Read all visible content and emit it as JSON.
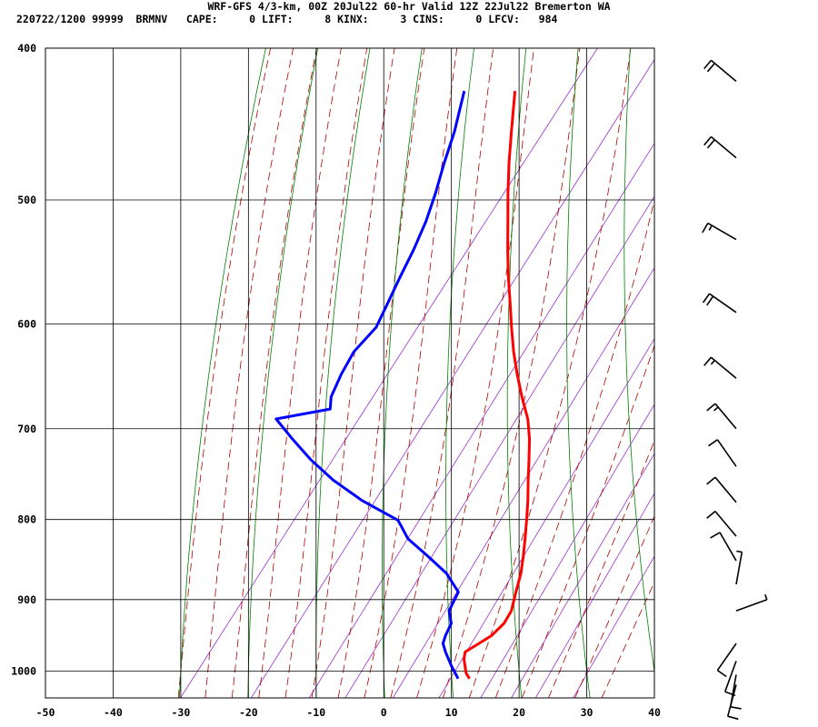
{
  "header": {
    "title": "WRF-GFS 4/3-km, 00Z 20Jul22 60-hr Valid 12Z 22Jul22 Bremerton WA",
    "info": "220722/1200 99999  BRMNV   CAPE:     0 LIFT:     8 KINX:     3 CINS:     0 LFCV:   984"
  },
  "chart_data": {
    "type": "line",
    "title": "WRF-GFS 4/3-km, 00Z 20Jul22 60-hr Valid 12Z 22Jul22 Bremerton WA",
    "xlabel": "",
    "ylabel": "",
    "xlim": [
      -50,
      40
    ],
    "ylim": [
      1040,
      400
    ],
    "y_scale": "log",
    "skew_t": true,
    "x_ticks": [
      -50,
      -40,
      -30,
      -20,
      -10,
      0,
      10,
      20,
      30,
      40
    ],
    "y_ticks": [
      400,
      500,
      600,
      700,
      800,
      900,
      1000
    ],
    "grid": true,
    "series": [
      {
        "name": "temperature",
        "color": "#ff0000",
        "points": [
          [
            13.5,
            1011
          ],
          [
            12.4,
            1003
          ],
          [
            11.5,
            993
          ],
          [
            10.5,
            982
          ],
          [
            9.9,
            972
          ],
          [
            11,
            960
          ],
          [
            12,
            949
          ],
          [
            12.5,
            932
          ],
          [
            12.2,
            915
          ],
          [
            10.8,
            890
          ],
          [
            9.5,
            866
          ],
          [
            8,
            845
          ],
          [
            6.3,
            823
          ],
          [
            4.5,
            801
          ],
          [
            2.5,
            778
          ],
          [
            0.3,
            755
          ],
          [
            -1.8,
            733
          ],
          [
            -4,
            711
          ],
          [
            -6.5,
            690
          ],
          [
            -9.8,
            668
          ],
          [
            -13,
            646
          ],
          [
            -16,
            625
          ],
          [
            -19,
            603
          ],
          [
            -22,
            581
          ],
          [
            -25,
            560
          ],
          [
            -28.1,
            538
          ],
          [
            -31.2,
            516
          ],
          [
            -34.3,
            495
          ],
          [
            -37.4,
            474
          ],
          [
            -40.6,
            452
          ],
          [
            -44.5,
            426
          ]
        ]
      },
      {
        "name": "dewpoint",
        "color": "#0000ff",
        "points": [
          [
            11.8,
            1011
          ],
          [
            10.8,
            1003
          ],
          [
            9.5,
            993
          ],
          [
            8.2,
            982
          ],
          [
            7,
            972
          ],
          [
            5.7,
            960
          ],
          [
            5.2,
            949
          ],
          [
            4.7,
            932
          ],
          [
            3,
            915
          ],
          [
            2.3,
            890
          ],
          [
            -1.5,
            866
          ],
          [
            -6,
            845
          ],
          [
            -11,
            823
          ],
          [
            -14.5,
            801
          ],
          [
            -22,
            778
          ],
          [
            -28.5,
            755
          ],
          [
            -34,
            733
          ],
          [
            -39,
            711
          ],
          [
            -43.7,
            690
          ],
          [
            -36.8,
            680
          ],
          [
            -38,
            668
          ],
          [
            -39,
            646
          ],
          [
            -39.6,
            625
          ],
          [
            -39,
            603
          ],
          [
            -40,
            581
          ],
          [
            -41,
            560
          ],
          [
            -42,
            538
          ],
          [
            -43.3,
            516
          ],
          [
            -45,
            495
          ],
          [
            -47,
            474
          ],
          [
            -49,
            452
          ],
          [
            -52,
            426
          ]
        ]
      }
    ],
    "wind_barbs": [
      {
        "p": 420,
        "dir": 310,
        "speed": 20
      },
      {
        "p": 470,
        "dir": 310,
        "speed": 20
      },
      {
        "p": 530,
        "dir": 300,
        "speed": 15
      },
      {
        "p": 590,
        "dir": 305,
        "speed": 20
      },
      {
        "p": 650,
        "dir": 310,
        "speed": 15
      },
      {
        "p": 700,
        "dir": 320,
        "speed": 15
      },
      {
        "p": 740,
        "dir": 325,
        "speed": 10
      },
      {
        "p": 780,
        "dir": 320,
        "speed": 10
      },
      {
        "p": 820,
        "dir": 320,
        "speed": 10
      },
      {
        "p": 850,
        "dir": 330,
        "speed": 10
      },
      {
        "p": 880,
        "dir": 10,
        "speed": 5
      },
      {
        "p": 915,
        "dir": 70,
        "speed": 5
      },
      {
        "p": 960,
        "dir": 215,
        "speed": 10
      },
      {
        "p": 985,
        "dir": 200,
        "speed": 10
      },
      {
        "p": 1005,
        "dir": 190,
        "speed": 10
      },
      {
        "p": 1020,
        "dir": 195,
        "speed": 10
      }
    ]
  },
  "colors": {
    "isotherm": "#000000",
    "dry_adiabat": "#008000",
    "moist_adiabat": "#b00000",
    "mixing_ratio": "#9932cc",
    "temperature": "#ff0000",
    "dewpoint": "#0000ff",
    "wind": "#000000"
  }
}
